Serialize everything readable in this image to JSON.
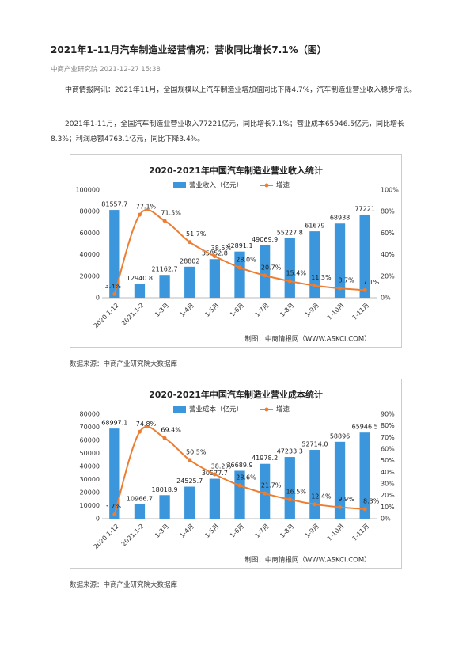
{
  "title": "2021年1-11月汽车制造业经营情况：营收同比增长7.1%（图）",
  "meta": "中商产业研究院 2021-12-27 15:38",
  "paragraphs": [
    "中商情报网讯：2021年11月，全国规模以上汽车制造业增加值同比下降4.7%，汽车制造业营业收入稳步增长。",
    "2021年1-11月，全国汽车制造业营业收入77221亿元，同比增长7.1%；营业成本65946.5亿元，同比增长8.3%；利润总额4763.1亿元，同比下降3.4%。"
  ],
  "chart_data": [
    {
      "type": "bar",
      "title": "2020-2021年中国汽车制造业营业收入统计",
      "categories": [
        "2020.1-12",
        "2021.1-2",
        "1-3月",
        "1-4月",
        "1-5月",
        "1-6月",
        "1-7月",
        "1-8月",
        "1-9月",
        "1-10月",
        "1-11月"
      ],
      "series": [
        {
          "name": "营业收入（亿元）",
          "color": "#3b96dc",
          "values": [
            81557.7,
            12940.8,
            21162.7,
            28802,
            35852.8,
            42891.1,
            49069.9,
            55227.8,
            61679,
            68938,
            77221
          ]
        },
        {
          "name": "增速",
          "color": "#ed7d31",
          "type": "line",
          "axis": "y2",
          "values": [
            3.4,
            77.1,
            71.5,
            51.7,
            38.5,
            28.0,
            20.7,
            15.4,
            11.3,
            8.7,
            7.1
          ],
          "value_labels": [
            "3.4%",
            "77.1%",
            "71.5%",
            "51.7%",
            "38.5%",
            "28.0%",
            "20.7%",
            "15.4%",
            "11.3%",
            "8.7%",
            "7.1%"
          ]
        }
      ],
      "ylim": [
        0,
        100000
      ],
      "yticks": [
        0,
        20000,
        40000,
        60000,
        80000,
        100000
      ],
      "y2lim": [
        0,
        100
      ],
      "y2ticks": [
        {
          "value": 0,
          "label": "0%"
        },
        {
          "value": 20,
          "label": "20%"
        },
        {
          "value": 40,
          "label": "40%"
        },
        {
          "value": 60,
          "label": "60%"
        },
        {
          "value": 80,
          "label": "80%"
        },
        {
          "value": 100,
          "label": "100%"
        }
      ],
      "note": "制图：中商情报网（WWW.ASKCI.COM）"
    },
    {
      "type": "bar",
      "title": "2020-2021年中国汽车制造业营业成本统计",
      "categories": [
        "2020.1-12",
        "2021.1-2",
        "1-3月",
        "1-4月",
        "1-5月",
        "1-6月",
        "1-7月",
        "1-8月",
        "1-9月",
        "1-10月",
        "1-11月"
      ],
      "series": [
        {
          "name": "营业成本（亿元）",
          "color": "#3b96dc",
          "values": [
            68997.1,
            10966.7,
            18018.9,
            24525.7,
            30577.7,
            36689.9,
            41978.2,
            47233.3,
            52714.0,
            58896,
            65946.5
          ],
          "value_labels": [
            "68997.1",
            "10966.7",
            "18018.9",
            "24525.7",
            "30577.7",
            "36689.9",
            "41978.2",
            "47233.3",
            "52714.0",
            "58896",
            "65946.5"
          ]
        },
        {
          "name": "增速",
          "color": "#ed7d31",
          "type": "line",
          "axis": "y2",
          "values": [
            3.7,
            74.8,
            69.4,
            50.5,
            38.2,
            28.6,
            21.7,
            16.5,
            12.4,
            9.9,
            8.3
          ],
          "value_labels": [
            "3.7%",
            "74.8%",
            "69.4%",
            "50.5%",
            "38.2%",
            "28.6%",
            "21.7%",
            "16.5%",
            "12.4%",
            "9.9%",
            "8.3%"
          ]
        }
      ],
      "ylim": [
        0,
        80000
      ],
      "yticks": [
        0,
        10000,
        20000,
        30000,
        40000,
        50000,
        60000,
        70000,
        80000
      ],
      "y2lim": [
        0,
        90
      ],
      "y2ticks": [
        {
          "value": 0,
          "label": "0%"
        },
        {
          "value": 10,
          "label": "10%"
        },
        {
          "value": 20,
          "label": "20%"
        },
        {
          "value": 30,
          "label": "30%"
        },
        {
          "value": 40,
          "label": "40%"
        },
        {
          "value": 50,
          "label": "50%"
        },
        {
          "value": 60,
          "label": "60%"
        },
        {
          "value": 70,
          "label": "70%"
        },
        {
          "value": 80,
          "label": "80%"
        },
        {
          "value": 90,
          "label": "90%"
        }
      ],
      "note": "制图：中商情报网（WWW.ASKCI.COM）"
    }
  ],
  "captions": [
    "数据来源：中商产业研究院大数据库",
    "数据来源：中商产业研究院大数据库"
  ]
}
